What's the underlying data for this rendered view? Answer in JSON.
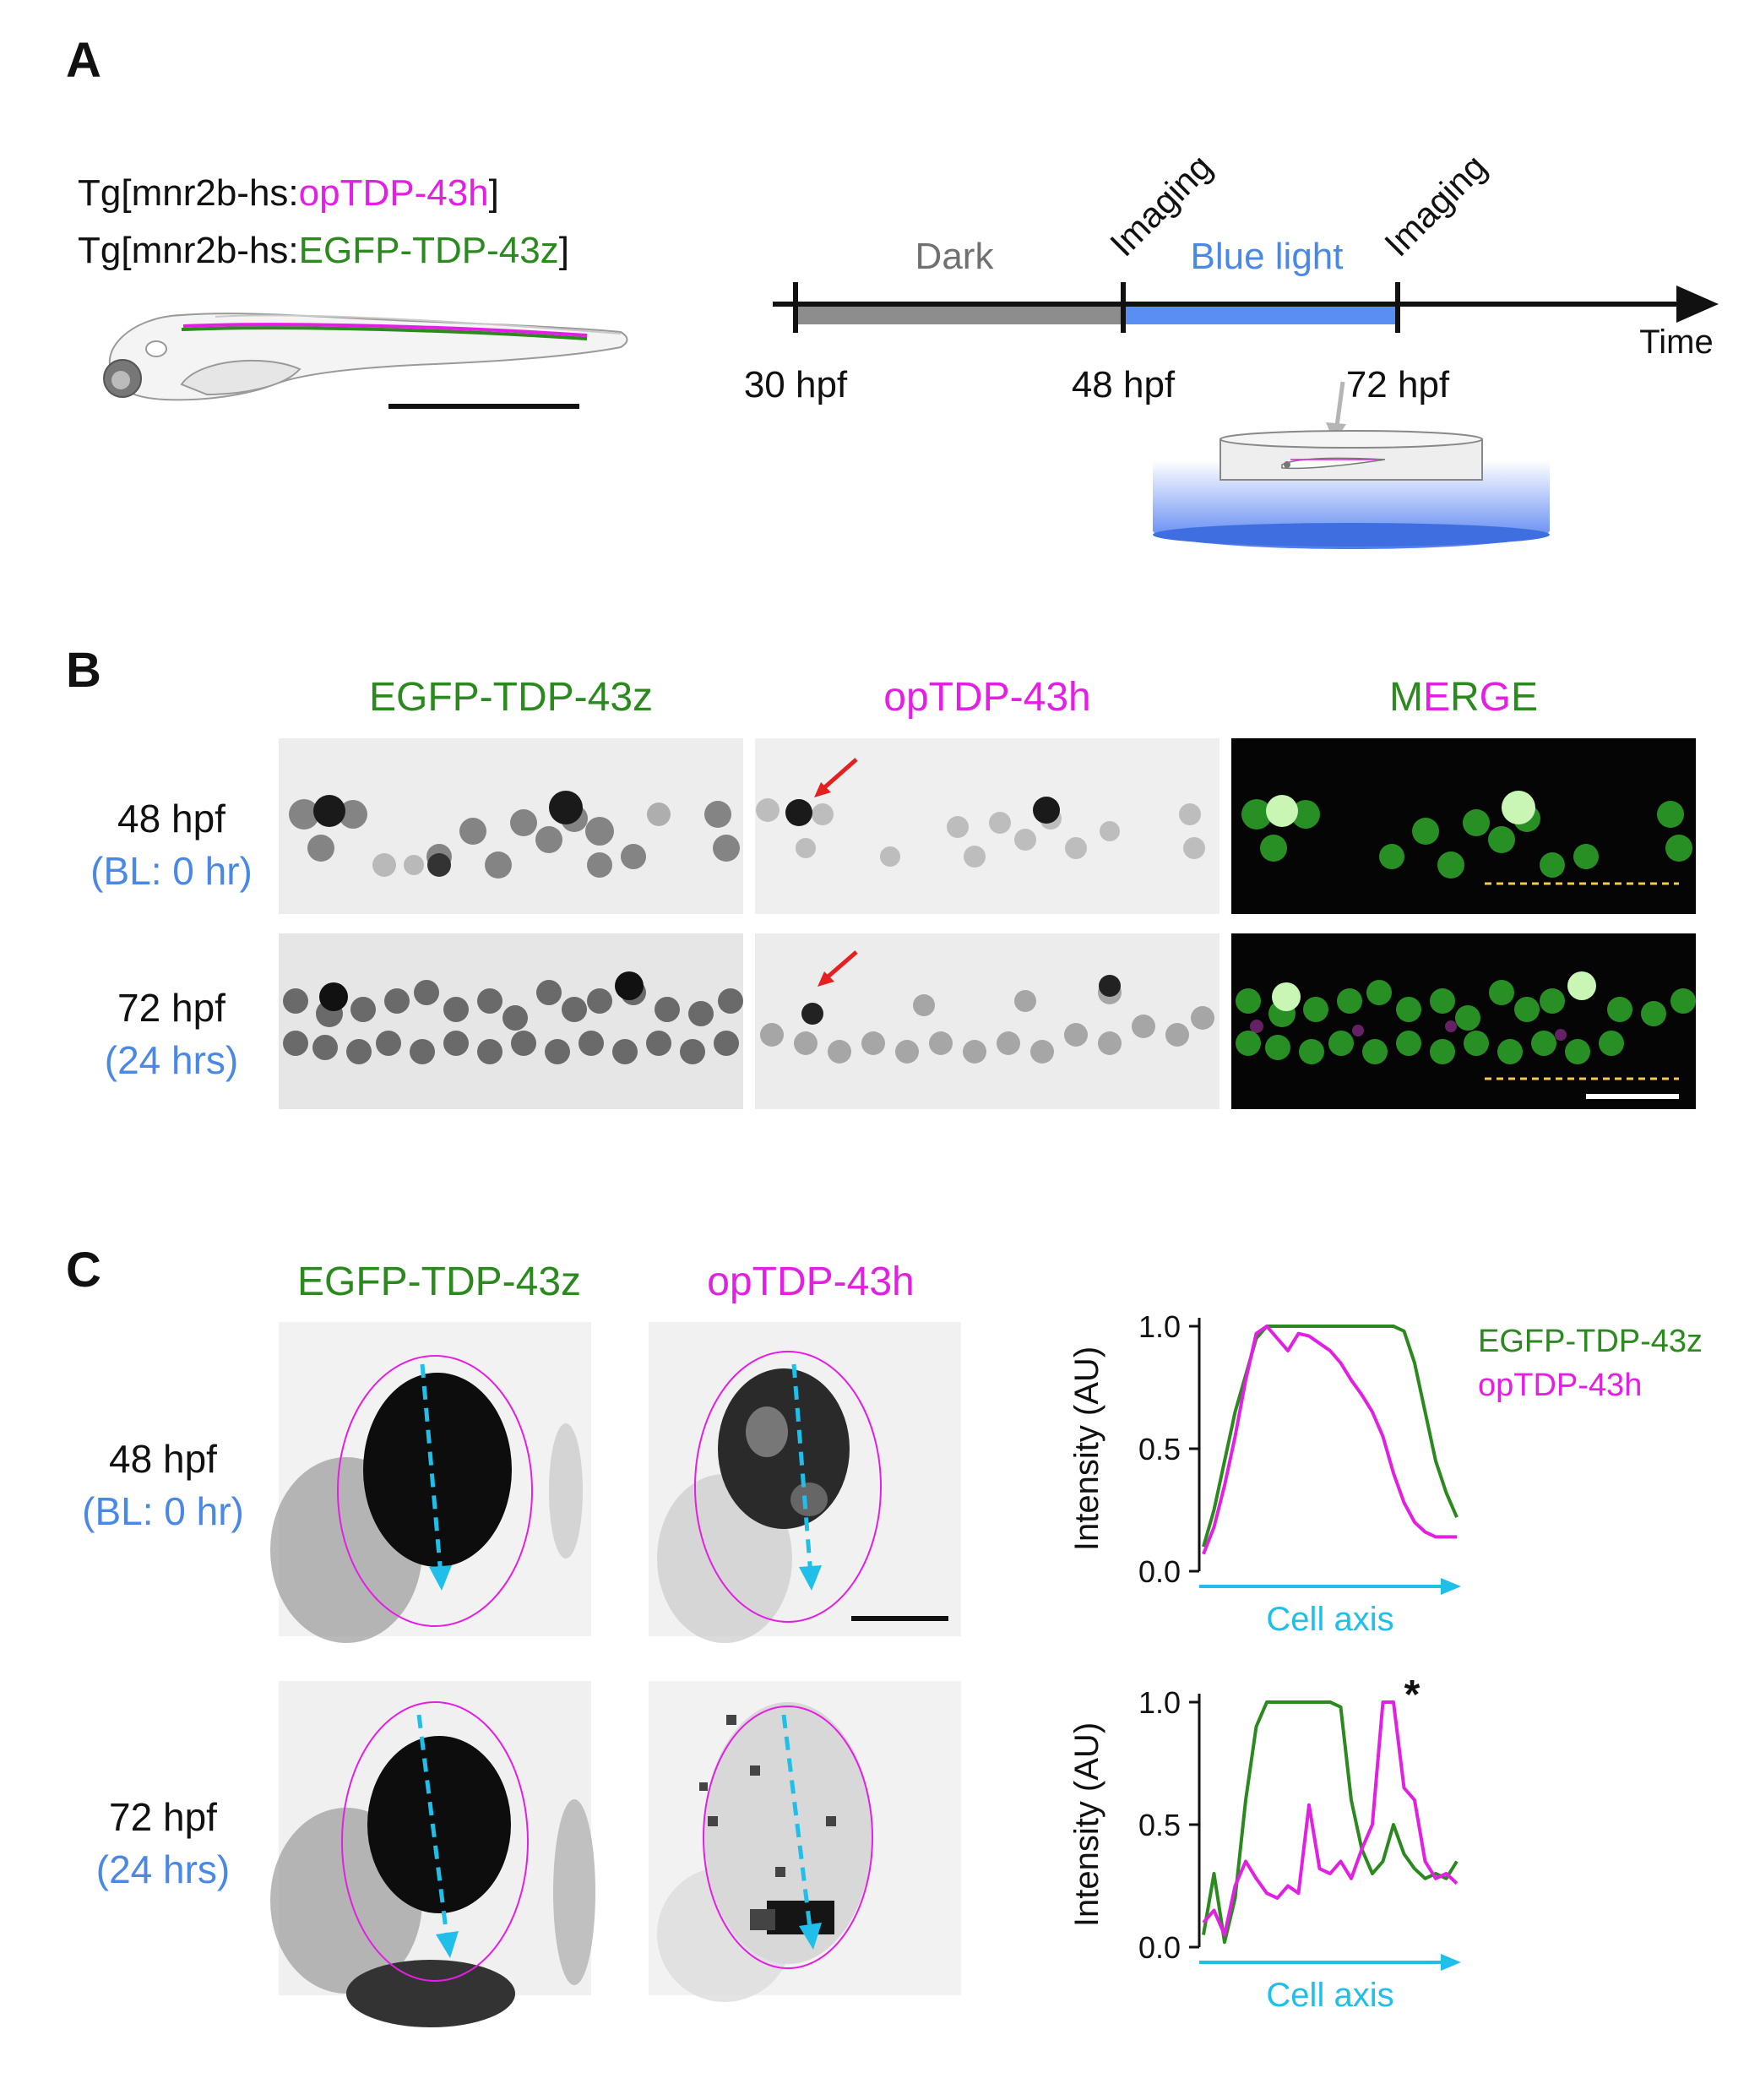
{
  "panels": {
    "a": "A",
    "b": "B",
    "c": "C"
  },
  "panel_a": {
    "tg_line1_prefix": "Tg[mnr2b-hs:",
    "tg_line1_construct": "opTDP-43h",
    "tg_line1_suffix": "]",
    "tg_line2_prefix": "Tg[mnr2b-hs:",
    "tg_line2_construct": "EGFP-TDP-43z",
    "tg_line2_suffix": "]",
    "timeline": {
      "dark_label": "Dark",
      "blue_label": "Blue light",
      "imaging1": "Imaging",
      "imaging2": "Imaging",
      "axis_label": "Time",
      "ticks": [
        "30 hpf",
        "48 hpf",
        "72 hpf"
      ]
    }
  },
  "panel_b": {
    "columns": [
      "EGFP-TDP-43z",
      "opTDP-43h"
    ],
    "merge_letters": [
      {
        "ch": "M",
        "color": "#2a8a1e"
      },
      {
        "ch": "E",
        "color": "#e41fe4"
      },
      {
        "ch": "R",
        "color": "#2a8a1e"
      },
      {
        "ch": "G",
        "color": "#e41fe4"
      },
      {
        "ch": "E",
        "color": "#2a8a1e"
      }
    ],
    "rows": [
      {
        "time": "48 hpf",
        "condition": "(BL: 0 hr)"
      },
      {
        "time": "72 hpf",
        "condition": "(24 hrs)"
      }
    ]
  },
  "panel_c": {
    "columns": [
      "EGFP-TDP-43z",
      "opTDP-43h"
    ],
    "rows": [
      {
        "time": "48 hpf",
        "condition": "(BL: 0 hr)"
      },
      {
        "time": "72 hpf",
        "condition": "(24 hrs)"
      }
    ]
  },
  "colors": {
    "green": "#2a8a1e",
    "magenta": "#e41fe4",
    "blue": "#4a88e6",
    "cyan": "#1fbfea",
    "dark_gray": "#707070"
  },
  "chart_data": [
    {
      "type": "line",
      "title": "",
      "xlabel": "Cell axis",
      "ylabel": "Intensity (AU)",
      "ylim": [
        0,
        1.0
      ],
      "yticks": [
        "0.0",
        "0.5",
        "1.0"
      ],
      "legend": [
        "EGFP-TDP-43z",
        "opTDP-43h"
      ],
      "legend_position": "top-right",
      "series": [
        {
          "name": "EGFP-TDP-43z",
          "color": "#2a8a1e",
          "values": [
            0.1,
            0.25,
            0.45,
            0.65,
            0.8,
            0.95,
            1.0,
            1.0,
            1.0,
            1.0,
            1.0,
            1.0,
            1.0,
            1.0,
            1.0,
            1.0,
            1.0,
            1.0,
            1.0,
            0.98,
            0.85,
            0.65,
            0.45,
            0.32,
            0.22
          ]
        },
        {
          "name": "opTDP-43h",
          "color": "#e41fe4",
          "values": [
            0.07,
            0.18,
            0.35,
            0.55,
            0.78,
            0.97,
            1.0,
            0.95,
            0.9,
            0.97,
            0.96,
            0.93,
            0.9,
            0.85,
            0.78,
            0.72,
            0.65,
            0.55,
            0.4,
            0.28,
            0.2,
            0.16,
            0.14,
            0.14,
            0.14
          ]
        }
      ]
    },
    {
      "type": "line",
      "title": "",
      "xlabel": "Cell axis",
      "ylabel": "Intensity (AU)",
      "ylim": [
        0,
        1.0
      ],
      "yticks": [
        "0.0",
        "0.5",
        "1.0"
      ],
      "annotation": "*",
      "series": [
        {
          "name": "EGFP-TDP-43z",
          "color": "#2a8a1e",
          "values": [
            0.05,
            0.3,
            0.02,
            0.2,
            0.6,
            0.9,
            1.0,
            1.0,
            1.0,
            1.0,
            1.0,
            1.0,
            1.0,
            0.98,
            0.6,
            0.4,
            0.3,
            0.35,
            0.5,
            0.38,
            0.32,
            0.28,
            0.3,
            0.28,
            0.35
          ]
        },
        {
          "name": "opTDP-43h",
          "color": "#e41fe4",
          "values": [
            0.1,
            0.15,
            0.05,
            0.25,
            0.35,
            0.28,
            0.22,
            0.2,
            0.25,
            0.22,
            0.58,
            0.32,
            0.3,
            0.35,
            0.28,
            0.4,
            0.5,
            1.0,
            1.0,
            0.65,
            0.6,
            0.35,
            0.28,
            0.3,
            0.26
          ]
        }
      ]
    }
  ]
}
